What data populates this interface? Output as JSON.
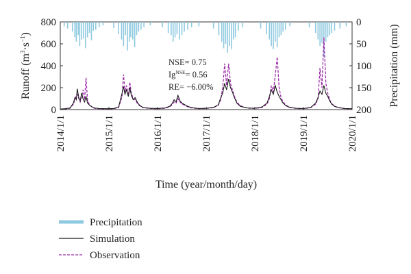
{
  "chart_data": {
    "type": "line",
    "xlabel": "Time (year/month/day)",
    "ylabel_left": "Runoff (m³·s⁻¹)",
    "ylabel_left_main": "Runoff (m",
    "ylabel_left_sup1": "3",
    "ylabel_left_mid": "·s",
    "ylabel_left_sup2": "−1",
    "ylabel_left_end": ")",
    "ylabel_right": "Precipitation (mm)",
    "x_ticks": [
      "2014/1/1",
      "2015/1/1",
      "2016/1/1",
      "2017/1/1",
      "2018/1/1",
      "2019/1/1",
      "2020/1/1"
    ],
    "xlim": [
      "2014-01-01",
      "2020-01-01"
    ],
    "ylim_left": [
      0,
      800
    ],
    "yticks_left": [
      "0",
      "200",
      "400",
      "600",
      "800"
    ],
    "ylim_right": [
      0,
      200
    ],
    "yticks_right": [
      "0",
      "50",
      "100",
      "150",
      "200"
    ],
    "right_axis_inverted": true,
    "stats": {
      "nse_text": "NSE= 0.75",
      "ig_prefix": "Ig",
      "ig_sup": "NSE",
      "ig_value": "= 0.56",
      "re_text": "RE= −6.00%"
    },
    "series": [
      {
        "name": "Precipitation",
        "axis": "right",
        "style": "bar",
        "color": "#8ec9df",
        "x_year_fraction": [
          2014.08,
          2014.15,
          2014.25,
          2014.3,
          2014.33,
          2014.37,
          2014.4,
          2014.44,
          2014.48,
          2014.52,
          2014.56,
          2014.6,
          2014.64,
          2014.68,
          2014.73,
          2014.8,
          2014.88,
          2015.1,
          2015.2,
          2015.26,
          2015.3,
          2015.34,
          2015.38,
          2015.42,
          2015.45,
          2015.49,
          2015.53,
          2015.57,
          2015.61,
          2015.66,
          2015.72,
          2015.85,
          2016.1,
          2016.22,
          2016.28,
          2016.32,
          2016.36,
          2016.4,
          2016.45,
          2016.5,
          2016.55,
          2016.62,
          2016.7,
          2016.85,
          2017.15,
          2017.26,
          2017.32,
          2017.36,
          2017.4,
          2017.44,
          2017.48,
          2017.52,
          2017.56,
          2017.6,
          2017.66,
          2017.75,
          2018.12,
          2018.24,
          2018.3,
          2018.34,
          2018.38,
          2018.42,
          2018.46,
          2018.5,
          2018.54,
          2018.58,
          2018.63,
          2018.72,
          2019.12,
          2019.25,
          2019.3,
          2019.34,
          2019.38,
          2019.42,
          2019.46,
          2019.5,
          2019.54,
          2019.58,
          2019.64,
          2019.75,
          2019.88
        ],
        "values": [
          10,
          15,
          22,
          35,
          45,
          30,
          55,
          40,
          38,
          60,
          35,
          25,
          42,
          20,
          18,
          12,
          8,
          14,
          28,
          40,
          55,
          30,
          65,
          45,
          35,
          40,
          58,
          30,
          22,
          18,
          12,
          8,
          12,
          25,
          30,
          45,
          35,
          28,
          40,
          30,
          22,
          18,
          12,
          10,
          15,
          30,
          45,
          60,
          50,
          70,
          55,
          62,
          40,
          35,
          20,
          12,
          15,
          28,
          40,
          55,
          62,
          45,
          58,
          35,
          30,
          22,
          18,
          10,
          12,
          25,
          40,
          55,
          48,
          80,
          45,
          35,
          30,
          25,
          20,
          15,
          10
        ]
      },
      {
        "name": "Simulation",
        "axis": "left",
        "style": "solid",
        "color": "#1a1a1a",
        "x_year_fraction": [
          2014.0,
          2014.1,
          2014.2,
          2014.27,
          2014.3,
          2014.33,
          2014.35,
          2014.38,
          2014.41,
          2014.44,
          2014.47,
          2014.5,
          2014.53,
          2014.56,
          2014.6,
          2014.65,
          2014.7,
          2014.8,
          2014.95,
          2015.1,
          2015.2,
          2015.27,
          2015.3,
          2015.33,
          2015.36,
          2015.4,
          2015.43,
          2015.46,
          2015.5,
          2015.54,
          2015.58,
          2015.63,
          2015.7,
          2015.85,
          2016.0,
          2016.15,
          2016.25,
          2016.3,
          2016.34,
          2016.38,
          2016.42,
          2016.46,
          2016.5,
          2016.56,
          2016.62,
          2016.7,
          2016.85,
          2017.0,
          2017.15,
          2017.25,
          2017.3,
          2017.34,
          2017.38,
          2017.42,
          2017.46,
          2017.5,
          2017.54,
          2017.58,
          2017.63,
          2017.7,
          2017.85,
          2018.0,
          2018.15,
          2018.25,
          2018.3,
          2018.34,
          2018.38,
          2018.42,
          2018.46,
          2018.5,
          2018.54,
          2018.58,
          2018.64,
          2018.72,
          2018.85,
          2019.0,
          2019.15,
          2019.25,
          2019.3,
          2019.34,
          2019.38,
          2019.42,
          2019.46,
          2019.5,
          2019.54,
          2019.58,
          2019.64,
          2019.72,
          2019.85,
          2020.0
        ],
        "values": [
          5,
          8,
          15,
          60,
          110,
          90,
          190,
          110,
          80,
          150,
          95,
          70,
          120,
          60,
          40,
          25,
          15,
          10,
          8,
          10,
          25,
          150,
          210,
          140,
          180,
          120,
          200,
          130,
          90,
          110,
          70,
          40,
          20,
          12,
          10,
          15,
          30,
          55,
          90,
          70,
          130,
          80,
          60,
          45,
          30,
          18,
          10,
          12,
          20,
          45,
          110,
          150,
          240,
          180,
          280,
          200,
          160,
          110,
          60,
          30,
          15,
          12,
          25,
          60,
          120,
          180,
          140,
          220,
          160,
          120,
          90,
          60,
          35,
          20,
          12,
          10,
          20,
          60,
          110,
          170,
          140,
          220,
          150,
          120,
          80,
          50,
          30,
          18,
          10,
          8
        ]
      },
      {
        "name": "Observation",
        "axis": "left",
        "style": "dashed",
        "color": "#9b2ba8",
        "x_year_fraction": [
          2014.0,
          2014.1,
          2014.2,
          2014.27,
          2014.3,
          2014.33,
          2014.35,
          2014.38,
          2014.41,
          2014.44,
          2014.47,
          2014.5,
          2014.53,
          2014.56,
          2014.6,
          2014.65,
          2014.7,
          2014.8,
          2014.95,
          2015.1,
          2015.2,
          2015.27,
          2015.3,
          2015.33,
          2015.36,
          2015.4,
          2015.43,
          2015.46,
          2015.5,
          2015.54,
          2015.58,
          2015.63,
          2015.7,
          2015.85,
          2016.0,
          2016.15,
          2016.25,
          2016.3,
          2016.34,
          2016.38,
          2016.42,
          2016.46,
          2016.5,
          2016.56,
          2016.62,
          2016.7,
          2016.85,
          2017.0,
          2017.15,
          2017.25,
          2017.3,
          2017.34,
          2017.38,
          2017.42,
          2017.46,
          2017.5,
          2017.54,
          2017.58,
          2017.63,
          2017.7,
          2017.85,
          2018.0,
          2018.15,
          2018.25,
          2018.3,
          2018.34,
          2018.38,
          2018.42,
          2018.46,
          2018.5,
          2018.54,
          2018.58,
          2018.64,
          2018.72,
          2018.85,
          2019.0,
          2019.15,
          2019.25,
          2019.3,
          2019.34,
          2019.38,
          2019.42,
          2019.46,
          2019.5,
          2019.54,
          2019.58,
          2019.64,
          2019.72,
          2019.85,
          2020.0
        ],
        "values": [
          4,
          6,
          12,
          50,
          90,
          130,
          140,
          100,
          70,
          120,
          180,
          90,
          290,
          80,
          45,
          25,
          12,
          8,
          6,
          8,
          20,
          120,
          320,
          160,
          220,
          130,
          250,
          150,
          100,
          90,
          60,
          35,
          18,
          10,
          8,
          12,
          25,
          45,
          70,
          60,
          100,
          70,
          50,
          40,
          25,
          15,
          8,
          10,
          18,
          40,
          90,
          200,
          420,
          220,
          420,
          240,
          180,
          120,
          70,
          35,
          14,
          10,
          20,
          50,
          100,
          220,
          160,
          310,
          480,
          200,
          110,
          70,
          40,
          22,
          10,
          8,
          18,
          50,
          100,
          380,
          200,
          660,
          240,
          150,
          90,
          55,
          32,
          18,
          9,
          6
        ]
      }
    ],
    "legend": {
      "position": "bottom-left",
      "items": [
        "Precipitation",
        "Simulation",
        "Observation"
      ]
    }
  }
}
